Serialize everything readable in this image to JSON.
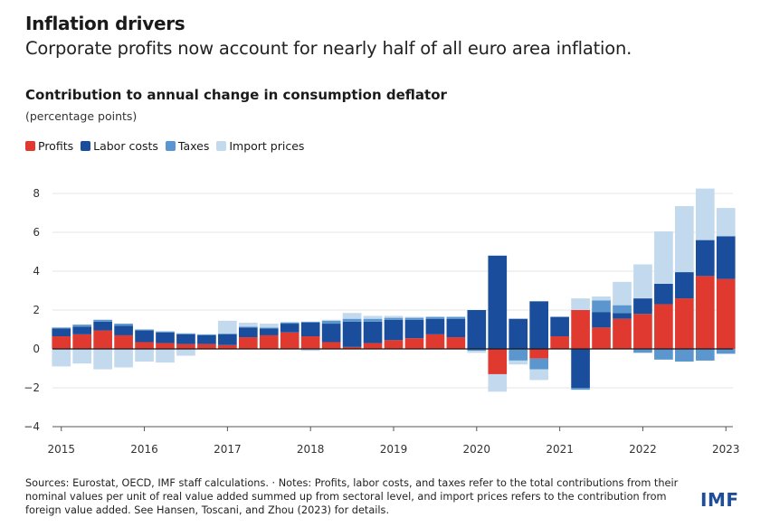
{
  "header": {
    "title": "Inflation drivers",
    "subtitle": "Corporate profits now account for nearly half of all euro area inflation."
  },
  "chart_title": "Contribution to annual change in consumption deflator",
  "chart_unit": "(percentage points)",
  "legend": [
    {
      "label": "Profits",
      "color": "#e03a30"
    },
    {
      "label": "Labor costs",
      "color": "#1a4e9c"
    },
    {
      "label": "Taxes",
      "color": "#5b97ce"
    },
    {
      "label": "Import prices",
      "color": "#c2d9ee"
    }
  ],
  "footer": {
    "text": "Sources: Eurostat, OECD, IMF staff calculations. · Notes: Profits, labor costs, and taxes refer to the total contributions from their nominal values per unit of real value added summed up from sectoral level, and import prices refers to the contribution from foreign value added. See Hansen, Toscani, and Zhou (2023) for details.",
    "logo": "IMF"
  },
  "chart_data": {
    "type": "bar",
    "stacked": true,
    "title": "Contribution to annual change in consumption deflator",
    "ylabel": "(percentage points)",
    "ylim": [
      -4,
      8
    ],
    "yticks": [
      -4,
      -2,
      0,
      2,
      4,
      6,
      8
    ],
    "grid": true,
    "legend_position": "top-left",
    "x_tick_labels": [
      "2015",
      "2016",
      "2017",
      "2018",
      "2019",
      "2020",
      "2021",
      "2022",
      "2023"
    ],
    "categories": [
      "2015Q1",
      "2015Q2",
      "2015Q3",
      "2015Q4",
      "2016Q1",
      "2016Q2",
      "2016Q3",
      "2016Q4",
      "2017Q1",
      "2017Q2",
      "2017Q3",
      "2017Q4",
      "2018Q1",
      "2018Q2",
      "2018Q3",
      "2018Q4",
      "2019Q1",
      "2019Q2",
      "2019Q3",
      "2019Q4",
      "2020Q1",
      "2020Q2",
      "2020Q3",
      "2020Q4",
      "2021Q1",
      "2021Q2",
      "2021Q3",
      "2021Q4",
      "2022Q1",
      "2022Q2",
      "2022Q3",
      "2022Q4",
      "2023Q1"
    ],
    "series": [
      {
        "name": "Profits",
        "color": "#e03a30",
        "values": [
          0.65,
          0.75,
          0.95,
          0.7,
          0.35,
          0.3,
          0.25,
          0.25,
          0.2,
          0.6,
          0.7,
          0.85,
          0.65,
          0.35,
          0.1,
          0.3,
          0.45,
          0.55,
          0.75,
          0.6,
          0.0,
          -1.3,
          0.0,
          -0.5,
          0.65,
          2.0,
          1.1,
          1.55,
          1.8,
          2.3,
          2.6,
          3.75,
          3.6
        ]
      },
      {
        "name": "Labor costs",
        "color": "#1a4e9c",
        "values": [
          0.4,
          0.4,
          0.45,
          0.5,
          0.6,
          0.55,
          0.5,
          0.45,
          0.55,
          0.5,
          0.35,
          0.45,
          0.7,
          0.95,
          1.3,
          1.1,
          1.05,
          0.95,
          0.8,
          0.95,
          2.0,
          4.8,
          1.55,
          2.45,
          1.0,
          -2.0,
          0.8,
          0.3,
          0.8,
          1.05,
          1.35,
          1.85,
          2.2
        ]
      },
      {
        "name": "Taxes",
        "color": "#5b97ce",
        "values": [
          0.05,
          0.1,
          0.1,
          0.1,
          0.05,
          0.05,
          0.05,
          0.05,
          0.05,
          0.05,
          0.05,
          0.05,
          0.05,
          0.15,
          0.15,
          0.15,
          0.1,
          0.1,
          0.1,
          0.1,
          -0.1,
          0.0,
          -0.6,
          -0.55,
          0.0,
          -0.1,
          0.6,
          0.4,
          -0.2,
          -0.55,
          -0.65,
          -0.6,
          -0.25
        ]
      },
      {
        "name": "Import prices",
        "color": "#c2d9ee",
        "values": [
          -0.9,
          -0.75,
          -1.05,
          -0.95,
          -0.65,
          -0.7,
          -0.35,
          0.0,
          0.65,
          0.2,
          0.2,
          0.05,
          -0.1,
          0.05,
          0.3,
          0.15,
          0.1,
          0.05,
          0.0,
          0.0,
          -0.1,
          -0.9,
          -0.2,
          -0.55,
          0.0,
          0.6,
          0.2,
          1.2,
          1.75,
          2.7,
          3.4,
          2.65,
          1.45
        ]
      }
    ]
  }
}
